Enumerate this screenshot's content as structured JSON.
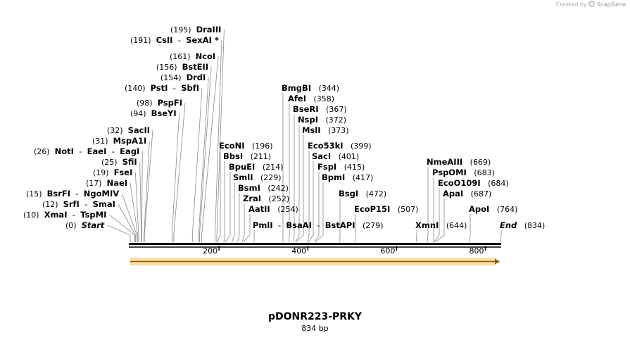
{
  "brand": {
    "prefix": "Created by",
    "name": "SnapGene",
    "icon": "snapgene-logo-icon"
  },
  "map": {
    "length": 834,
    "ticks": [
      200,
      400,
      600,
      800
    ]
  },
  "plasmid": {
    "name": "pDONR223-PRKY",
    "size_label": "834 bp"
  },
  "feature": {
    "name": "orf-arrow",
    "start": 0,
    "end": 834,
    "color": "#f5c163"
  },
  "enzymes": [
    {
      "label": "(0)",
      "names": [
        "Start"
      ],
      "site": 0,
      "special": true
    },
    {
      "label": "(10)",
      "names": [
        "XmaI",
        "TspMI"
      ],
      "site": 10
    },
    {
      "label": "(12)",
      "names": [
        "SrfI",
        "SmaI"
      ],
      "site": 12
    },
    {
      "label": "(15)",
      "names": [
        "BsrFI",
        "NgoMIV"
      ],
      "site": 15
    },
    {
      "label": "(17)",
      "names": [
        "NaeI"
      ],
      "site": 17
    },
    {
      "label": "(19)",
      "names": [
        "FseI"
      ],
      "site": 19
    },
    {
      "label": "(25)",
      "names": [
        "SfiI"
      ],
      "site": 25
    },
    {
      "label": "(26)",
      "names": [
        "NotI",
        "EaeI",
        "EagI"
      ],
      "site": 26
    },
    {
      "label": "(31)",
      "names": [
        "MspA1I"
      ],
      "site": 31
    },
    {
      "label": "(32)",
      "names": [
        "SacII"
      ],
      "site": 32
    },
    {
      "label": "(94)",
      "names": [
        "BseYI"
      ],
      "site": 94
    },
    {
      "label": "(98)",
      "names": [
        "PspFI"
      ],
      "site": 98
    },
    {
      "label": "(140)",
      "names": [
        "PstI",
        "SbfI"
      ],
      "site": 140
    },
    {
      "label": "(154)",
      "names": [
        "DrdI"
      ],
      "site": 154
    },
    {
      "label": "(156)",
      "names": [
        "BstEII"
      ],
      "site": 156
    },
    {
      "label": "(161)",
      "names": [
        "NcoI"
      ],
      "site": 161
    },
    {
      "label": "(191)",
      "names": [
        "CsII",
        "SexAI *"
      ],
      "site": 191
    },
    {
      "label": "(195)",
      "names": [
        "DraIII"
      ],
      "site": 195
    },
    {
      "label": "(196)",
      "names": [
        "EcoNI"
      ],
      "site": 196
    },
    {
      "label": "(211)",
      "names": [
        "BbsI"
      ],
      "site": 211
    },
    {
      "label": "(214)",
      "names": [
        "BpuEI"
      ],
      "site": 214
    },
    {
      "label": "(229)",
      "names": [
        "SmlI"
      ],
      "site": 229
    },
    {
      "label": "(242)",
      "names": [
        "BsmI"
      ],
      "site": 242
    },
    {
      "label": "(252)",
      "names": [
        "ZraI"
      ],
      "site": 252
    },
    {
      "label": "(254)",
      "names": [
        "AatII"
      ],
      "site": 254
    },
    {
      "label": "(279)",
      "names": [
        "PmlI",
        "BsaAI",
        "BstAPI"
      ],
      "site": 279
    },
    {
      "label": "(344)",
      "names": [
        "BmgBI"
      ],
      "site": 344
    },
    {
      "label": "(358)",
      "names": [
        "AfeI"
      ],
      "site": 358
    },
    {
      "label": "(367)",
      "names": [
        "BseRI"
      ],
      "site": 367
    },
    {
      "label": "(372)",
      "names": [
        "NspI"
      ],
      "site": 372
    },
    {
      "label": "(373)",
      "names": [
        "MslI"
      ],
      "site": 373
    },
    {
      "label": "(399)",
      "names": [
        "Eco53kI"
      ],
      "site": 399
    },
    {
      "label": "(401)",
      "names": [
        "SacI"
      ],
      "site": 401
    },
    {
      "label": "(415)",
      "names": [
        "FspI"
      ],
      "site": 415
    },
    {
      "label": "(417)",
      "names": [
        "BpmI"
      ],
      "site": 417
    },
    {
      "label": "(472)",
      "names": [
        "BsgI"
      ],
      "site": 472
    },
    {
      "label": "(507)",
      "names": [
        "EcoP15I"
      ],
      "site": 507
    },
    {
      "label": "(644)",
      "names": [
        "XmnI"
      ],
      "site": 644
    },
    {
      "label": "(669)",
      "names": [
        "NmeAIII"
      ],
      "site": 669
    },
    {
      "label": "(683)",
      "names": [
        "PspOMI"
      ],
      "site": 683
    },
    {
      "label": "(684)",
      "names": [
        "EcoO109I"
      ],
      "site": 684
    },
    {
      "label": "(687)",
      "names": [
        "ApaI"
      ],
      "site": 687
    },
    {
      "label": "(764)",
      "names": [
        "ApoI"
      ],
      "site": 764
    },
    {
      "label": "(834)",
      "names": [
        "End"
      ],
      "site": 834,
      "special": true
    }
  ]
}
